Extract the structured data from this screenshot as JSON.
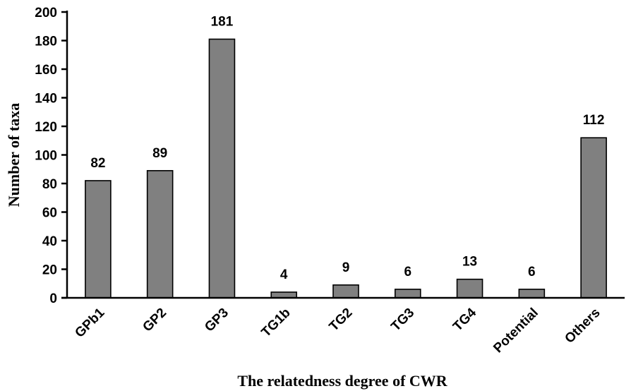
{
  "chart_data": {
    "type": "bar",
    "categories": [
      "GPb1",
      "GP2",
      "GP3",
      "TG1b",
      "TG2",
      "TG3",
      "TG4",
      "Potential",
      "Others"
    ],
    "values": [
      82,
      89,
      181,
      4,
      9,
      6,
      13,
      6,
      112
    ],
    "data_labels": [
      "82",
      "89",
      "181",
      "4",
      "9",
      "6",
      "13",
      "6",
      "112"
    ],
    "xlabel": "The relatedness degree of CWR",
    "ylabel": "Number of taxa",
    "ylim": [
      0,
      200
    ],
    "yticks": [
      0,
      20,
      40,
      60,
      80,
      100,
      120,
      140,
      160,
      180,
      200
    ],
    "bar_color": "#808080",
    "grid": false,
    "legend": "none"
  }
}
